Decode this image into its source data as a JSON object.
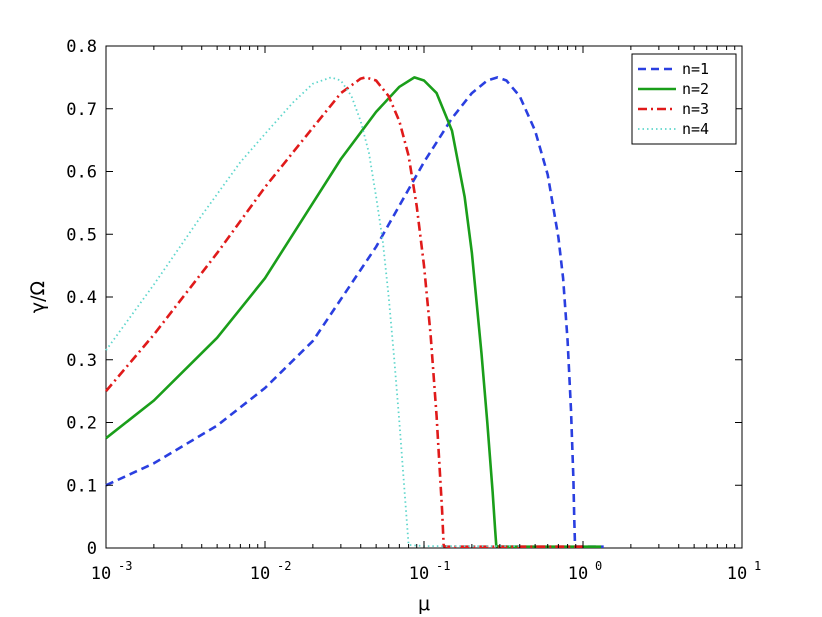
{
  "chart_data": {
    "type": "line",
    "title": "",
    "xlabel": "μ",
    "ylabel": "γ/Ω",
    "xscale": "log",
    "xlim": [
      0.001,
      10
    ],
    "ylim": [
      0,
      0.8
    ],
    "x_ticks": [
      {
        "value": 0.001,
        "base": "10",
        "exp": "-3"
      },
      {
        "value": 0.01,
        "base": "10",
        "exp": "-2"
      },
      {
        "value": 0.1,
        "base": "10",
        "exp": "-1"
      },
      {
        "value": 1,
        "base": "10",
        "exp": "0"
      },
      {
        "value": 10,
        "base": "10",
        "exp": "1"
      }
    ],
    "y_ticks": [
      {
        "value": 0,
        "label": "0"
      },
      {
        "value": 0.1,
        "label": "0.1"
      },
      {
        "value": 0.2,
        "label": "0.2"
      },
      {
        "value": 0.3,
        "label": "0.3"
      },
      {
        "value": 0.4,
        "label": "0.4"
      },
      {
        "value": 0.5,
        "label": "0.5"
      },
      {
        "value": 0.6,
        "label": "0.6"
      },
      {
        "value": 0.7,
        "label": "0.7"
      },
      {
        "value": 0.8,
        "label": "0.8"
      }
    ],
    "grid": false,
    "legend_position": "top-right",
    "series": [
      {
        "name": "n=1",
        "color": "#2a3fe0",
        "dash": "dashed",
        "x": [
          0.001,
          0.002,
          0.005,
          0.01,
          0.02,
          0.05,
          0.1,
          0.15,
          0.2,
          0.25,
          0.29,
          0.33,
          0.4,
          0.5,
          0.6,
          0.7,
          0.75,
          0.8,
          0.84,
          0.87,
          0.88,
          0.89,
          0.9,
          1.0,
          1.35
        ],
        "y": [
          0.1,
          0.135,
          0.195,
          0.255,
          0.33,
          0.48,
          0.615,
          0.685,
          0.725,
          0.745,
          0.75,
          0.745,
          0.72,
          0.665,
          0.595,
          0.495,
          0.43,
          0.33,
          0.22,
          0.11,
          0.05,
          0.005,
          0.002,
          0.002,
          0.002
        ]
      },
      {
        "name": "n=2",
        "color": "#1a9e1a",
        "dash": "solid",
        "x": [
          0.001,
          0.002,
          0.005,
          0.01,
          0.02,
          0.03,
          0.05,
          0.07,
          0.087,
          0.1,
          0.12,
          0.15,
          0.18,
          0.2,
          0.23,
          0.25,
          0.27,
          0.28,
          0.285,
          0.3,
          0.4,
          0.6,
          1.0,
          1.3
        ],
        "y": [
          0.175,
          0.235,
          0.335,
          0.43,
          0.55,
          0.62,
          0.695,
          0.735,
          0.75,
          0.745,
          0.725,
          0.665,
          0.56,
          0.47,
          0.31,
          0.2,
          0.09,
          0.03,
          0.003,
          0.002,
          0.002,
          0.002,
          0.002,
          0.002
        ]
      },
      {
        "name": "n=3",
        "color": "#e01a1a",
        "dash": "dashdot",
        "x": [
          0.001,
          0.002,
          0.005,
          0.01,
          0.02,
          0.03,
          0.04,
          0.043,
          0.05,
          0.06,
          0.07,
          0.08,
          0.09,
          0.1,
          0.11,
          0.12,
          0.13,
          0.133,
          0.14,
          0.2,
          0.4,
          0.7,
          1.0
        ],
        "y": [
          0.25,
          0.34,
          0.47,
          0.575,
          0.67,
          0.725,
          0.748,
          0.75,
          0.745,
          0.72,
          0.68,
          0.625,
          0.545,
          0.45,
          0.34,
          0.21,
          0.06,
          0.003,
          0.002,
          0.002,
          0.002,
          0.002,
          0.002
        ]
      },
      {
        "name": "n=4",
        "color": "#5fd6cc",
        "dash": "dotted",
        "x": [
          0.001,
          0.002,
          0.004,
          0.007,
          0.01,
          0.015,
          0.02,
          0.026,
          0.03,
          0.035,
          0.04,
          0.045,
          0.05,
          0.055,
          0.06,
          0.065,
          0.07,
          0.075,
          0.08,
          0.1,
          0.2,
          0.4
        ],
        "y": [
          0.315,
          0.42,
          0.53,
          0.615,
          0.66,
          0.71,
          0.74,
          0.75,
          0.745,
          0.72,
          0.68,
          0.63,
          0.56,
          0.49,
          0.4,
          0.3,
          0.2,
          0.1,
          0.005,
          0.003,
          0.003,
          0.003
        ]
      }
    ]
  }
}
